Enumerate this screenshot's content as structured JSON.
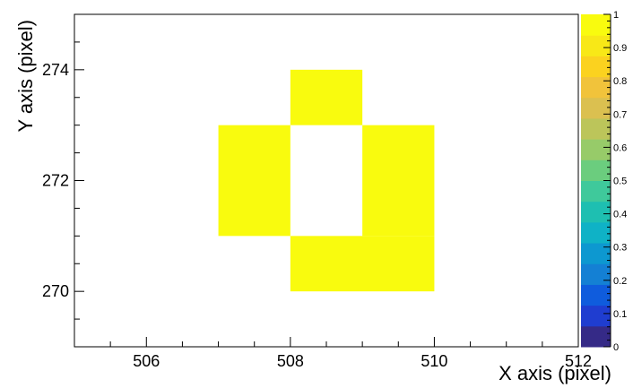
{
  "chart_data": {
    "type": "heatmap",
    "title": "",
    "xlabel": "X axis (pixel)",
    "ylabel": "Y axis (pixel)",
    "xlim": [
      505,
      512
    ],
    "ylim": [
      269,
      275
    ],
    "x_ticks": [
      506,
      508,
      510,
      512
    ],
    "y_ticks": [
      270,
      272,
      274
    ],
    "zlim": [
      0,
      1
    ],
    "z_ticks": [
      0,
      0.1,
      0.2,
      0.3,
      0.4,
      0.5,
      0.6,
      0.7,
      0.8,
      0.9,
      1
    ],
    "cells": [
      {
        "x0": 508,
        "x1": 509,
        "y0": 273,
        "y1": 274,
        "value": 1
      },
      {
        "x0": 507,
        "x1": 508,
        "y0": 271,
        "y1": 273,
        "value": 1
      },
      {
        "x0": 509,
        "x1": 510,
        "y0": 271,
        "y1": 273,
        "value": 1
      },
      {
        "x0": 508,
        "x1": 510,
        "y0": 270,
        "y1": 271,
        "value": 1
      }
    ],
    "palette": [
      "#352a87",
      "#1f3dd0",
      "#0f5cdd",
      "#1480d4",
      "#0d98d0",
      "#0fb2c6",
      "#1ebfb1",
      "#3fc99b",
      "#6bcd7e",
      "#97cb69",
      "#bcc55a",
      "#dbc050",
      "#f1c33b",
      "#fbd21f",
      "#f8e817",
      "#f9fb0e"
    ]
  }
}
